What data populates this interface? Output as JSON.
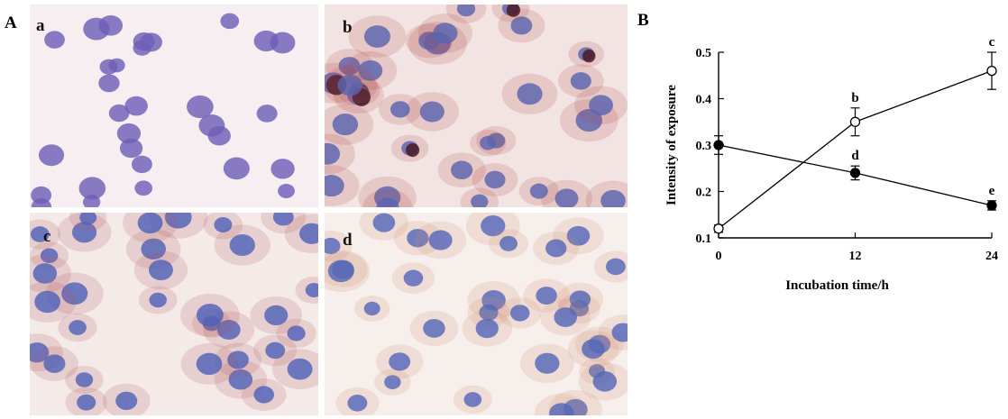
{
  "panel_a": {
    "letter": "A",
    "images": [
      {
        "label": "a",
        "tint": "#f6eef0",
        "nucleus": "#6f5fb8",
        "stain": "#c98a86"
      },
      {
        "label": "b",
        "tint": "#f2e4e2",
        "nucleus": "#5a64b0",
        "stain": "#b44a48"
      },
      {
        "label": "c",
        "tint": "#f4eae8",
        "nucleus": "#4f62b8",
        "stain": "#b45a60"
      },
      {
        "label": "d",
        "tint": "#f7efec",
        "nucleus": "#5668b8",
        "stain": "#cf8a70"
      }
    ]
  },
  "panel_b": {
    "letter": "B"
  },
  "chart_data": {
    "type": "line",
    "xlabel": "Incubation time/h",
    "ylabel": "Intensity of exposure",
    "x": [
      0,
      12,
      24
    ],
    "x_ticks": [
      "0",
      "12",
      "24"
    ],
    "y_ticks": [
      "0.1",
      "0.2",
      "0.3",
      "0.4",
      "0.5"
    ],
    "ylim": [
      0.1,
      0.5
    ],
    "xlim": [
      0,
      24
    ],
    "grid": false,
    "series": [
      {
        "marker": "open-circle",
        "values": [
          0.12,
          0.35,
          0.46
        ],
        "errors": [
          0.008,
          0.03,
          0.04
        ],
        "point_labels": [
          "",
          "b",
          "c"
        ]
      },
      {
        "marker": "filled-circle",
        "values": [
          0.3,
          0.24,
          0.17
        ],
        "errors": [
          0.02,
          0.015,
          0.01
        ],
        "point_labels": [
          "",
          "d",
          "e"
        ]
      }
    ]
  }
}
